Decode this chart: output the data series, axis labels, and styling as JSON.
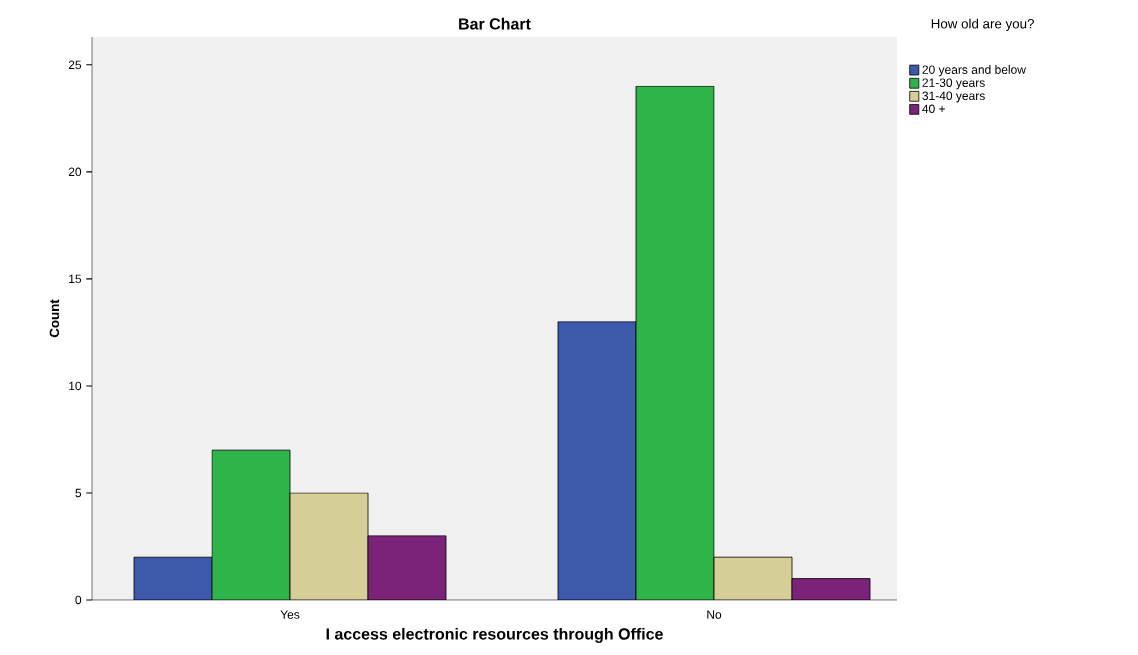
{
  "chart_data": {
    "type": "bar",
    "title": "Bar Chart",
    "xlabel": "I access electronic resources through Office",
    "ylabel": "Count",
    "legend_title": "How old are you?",
    "categories": [
      "Yes",
      "No"
    ],
    "series": [
      {
        "name": "20 years and below",
        "color": "#3e58ac",
        "values": [
          2,
          13
        ]
      },
      {
        "name": "21-30 years",
        "color": "#2fb44a",
        "values": [
          7,
          24
        ]
      },
      {
        "name": "31-40 years",
        "color": "#d5ce96",
        "values": [
          5,
          2
        ]
      },
      {
        "name": "40 +",
        "color": "#7b2378",
        "values": [
          3,
          1
        ]
      }
    ],
    "ylim": [
      0,
      26.3
    ],
    "yticks": [
      0,
      5,
      10,
      15,
      20,
      25
    ],
    "grid": false,
    "legend": "right"
  }
}
